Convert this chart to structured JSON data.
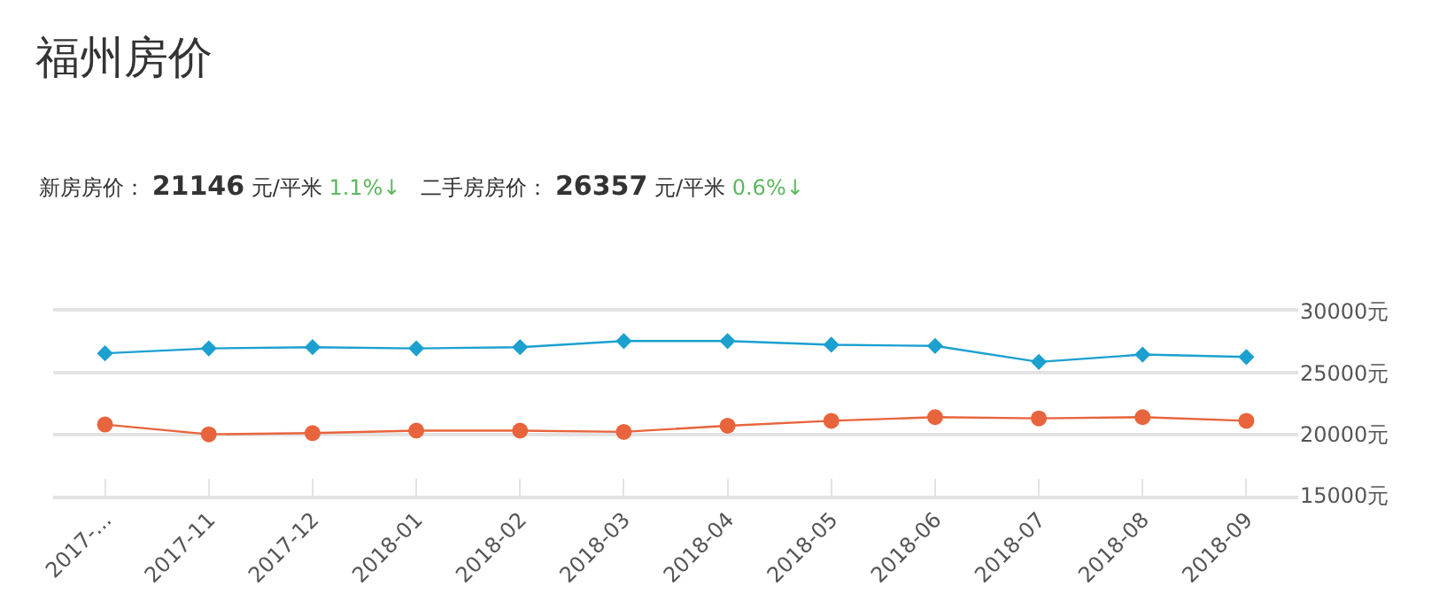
{
  "chart_data": {
    "type": "line",
    "title": "福州房价",
    "annotations": [
      "新房房价：",
      "21146",
      "元/平米",
      "1.1%↓",
      "二手房房价：",
      "26357",
      "元/平米",
      "0.6%↓"
    ],
    "categories": [
      "2017-...",
      "2017-11",
      "2017-12",
      "2018-01",
      "2018-02",
      "2018-03",
      "2018-04",
      "2018-05",
      "2018-06",
      "2018-07",
      "2018-08",
      "2018-09"
    ],
    "series": [
      {
        "color": "#1ba0d0",
        "marker": "diamond",
        "values": [
          26600,
          27000,
          27100,
          27000,
          27100,
          27600,
          27600,
          27300,
          27200,
          25900,
          26500,
          26300
        ]
      },
      {
        "color": "#e8643c",
        "marker": "circle",
        "values": [
          20800,
          20000,
          20100,
          20300,
          20300,
          20200,
          20700,
          21100,
          21400,
          21300,
          21400,
          21100
        ]
      }
    ],
    "ylim": [
      15000,
      30000
    ],
    "yticks": [
      {
        "value": 15000,
        "label": "15000元"
      },
      {
        "value": 20000,
        "label": "20000元"
      },
      {
        "value": 25000,
        "label": "25000元"
      },
      {
        "value": 30000,
        "label": "30000元"
      }
    ],
    "grid": "y",
    "legend": false,
    "line_style": "solid"
  }
}
